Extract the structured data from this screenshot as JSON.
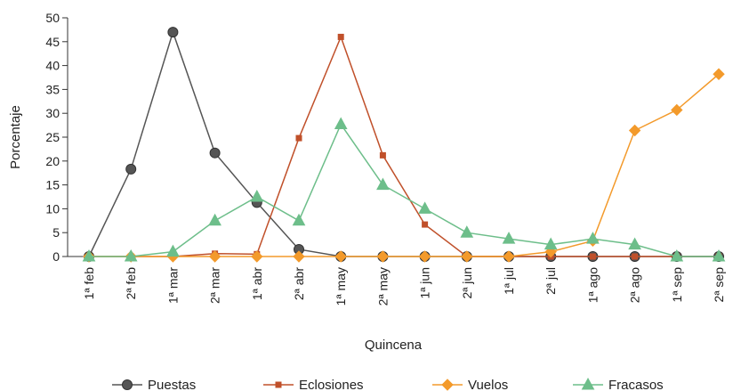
{
  "chart_data": {
    "type": "line",
    "title": "",
    "xlabel": "Quincena",
    "ylabel": "Porcentaje",
    "ylim": [
      0,
      50
    ],
    "yticks": [
      0,
      5,
      10,
      15,
      20,
      25,
      30,
      35,
      40,
      45,
      50
    ],
    "categories": [
      "1ª feb",
      "2ª feb",
      "1ª mar",
      "2ª mar",
      "1ª abr",
      "2ª abr",
      "1ª may",
      "2ª may",
      "1ª jun",
      "2ª jun",
      "1ª jul",
      "2ª jul",
      "1ª ago",
      "2ª ago",
      "1ª sep",
      "2ª sep"
    ],
    "grid": false,
    "legend_position": "bottom",
    "series": [
      {
        "name": "Puestas",
        "color": "#555555",
        "marker": "circle",
        "values": [
          0,
          18.3,
          47,
          21.7,
          11.3,
          1.5,
          0,
          0,
          0,
          0,
          0,
          0,
          0,
          0,
          0,
          0
        ]
      },
      {
        "name": "Eclosiones",
        "color": "#c0502a",
        "marker": "square",
        "values": [
          0,
          0,
          0,
          0.6,
          0.5,
          24.8,
          46,
          21.2,
          6.7,
          0,
          0,
          0,
          0,
          0,
          0,
          0
        ]
      },
      {
        "name": "Vuelos",
        "color": "#f39a2b",
        "marker": "diamond",
        "values": [
          0,
          0,
          0,
          0,
          0,
          0,
          0,
          0,
          0,
          0,
          0,
          1,
          3.3,
          26.4,
          30.7,
          38.2
        ]
      },
      {
        "name": "Fracasos",
        "color": "#6dbe8a",
        "marker": "triangle",
        "values": [
          0,
          0,
          1,
          7.5,
          12.5,
          7.5,
          27.7,
          15,
          10,
          5,
          3.7,
          2.5,
          3.7,
          2.5,
          0,
          0
        ]
      }
    ]
  }
}
